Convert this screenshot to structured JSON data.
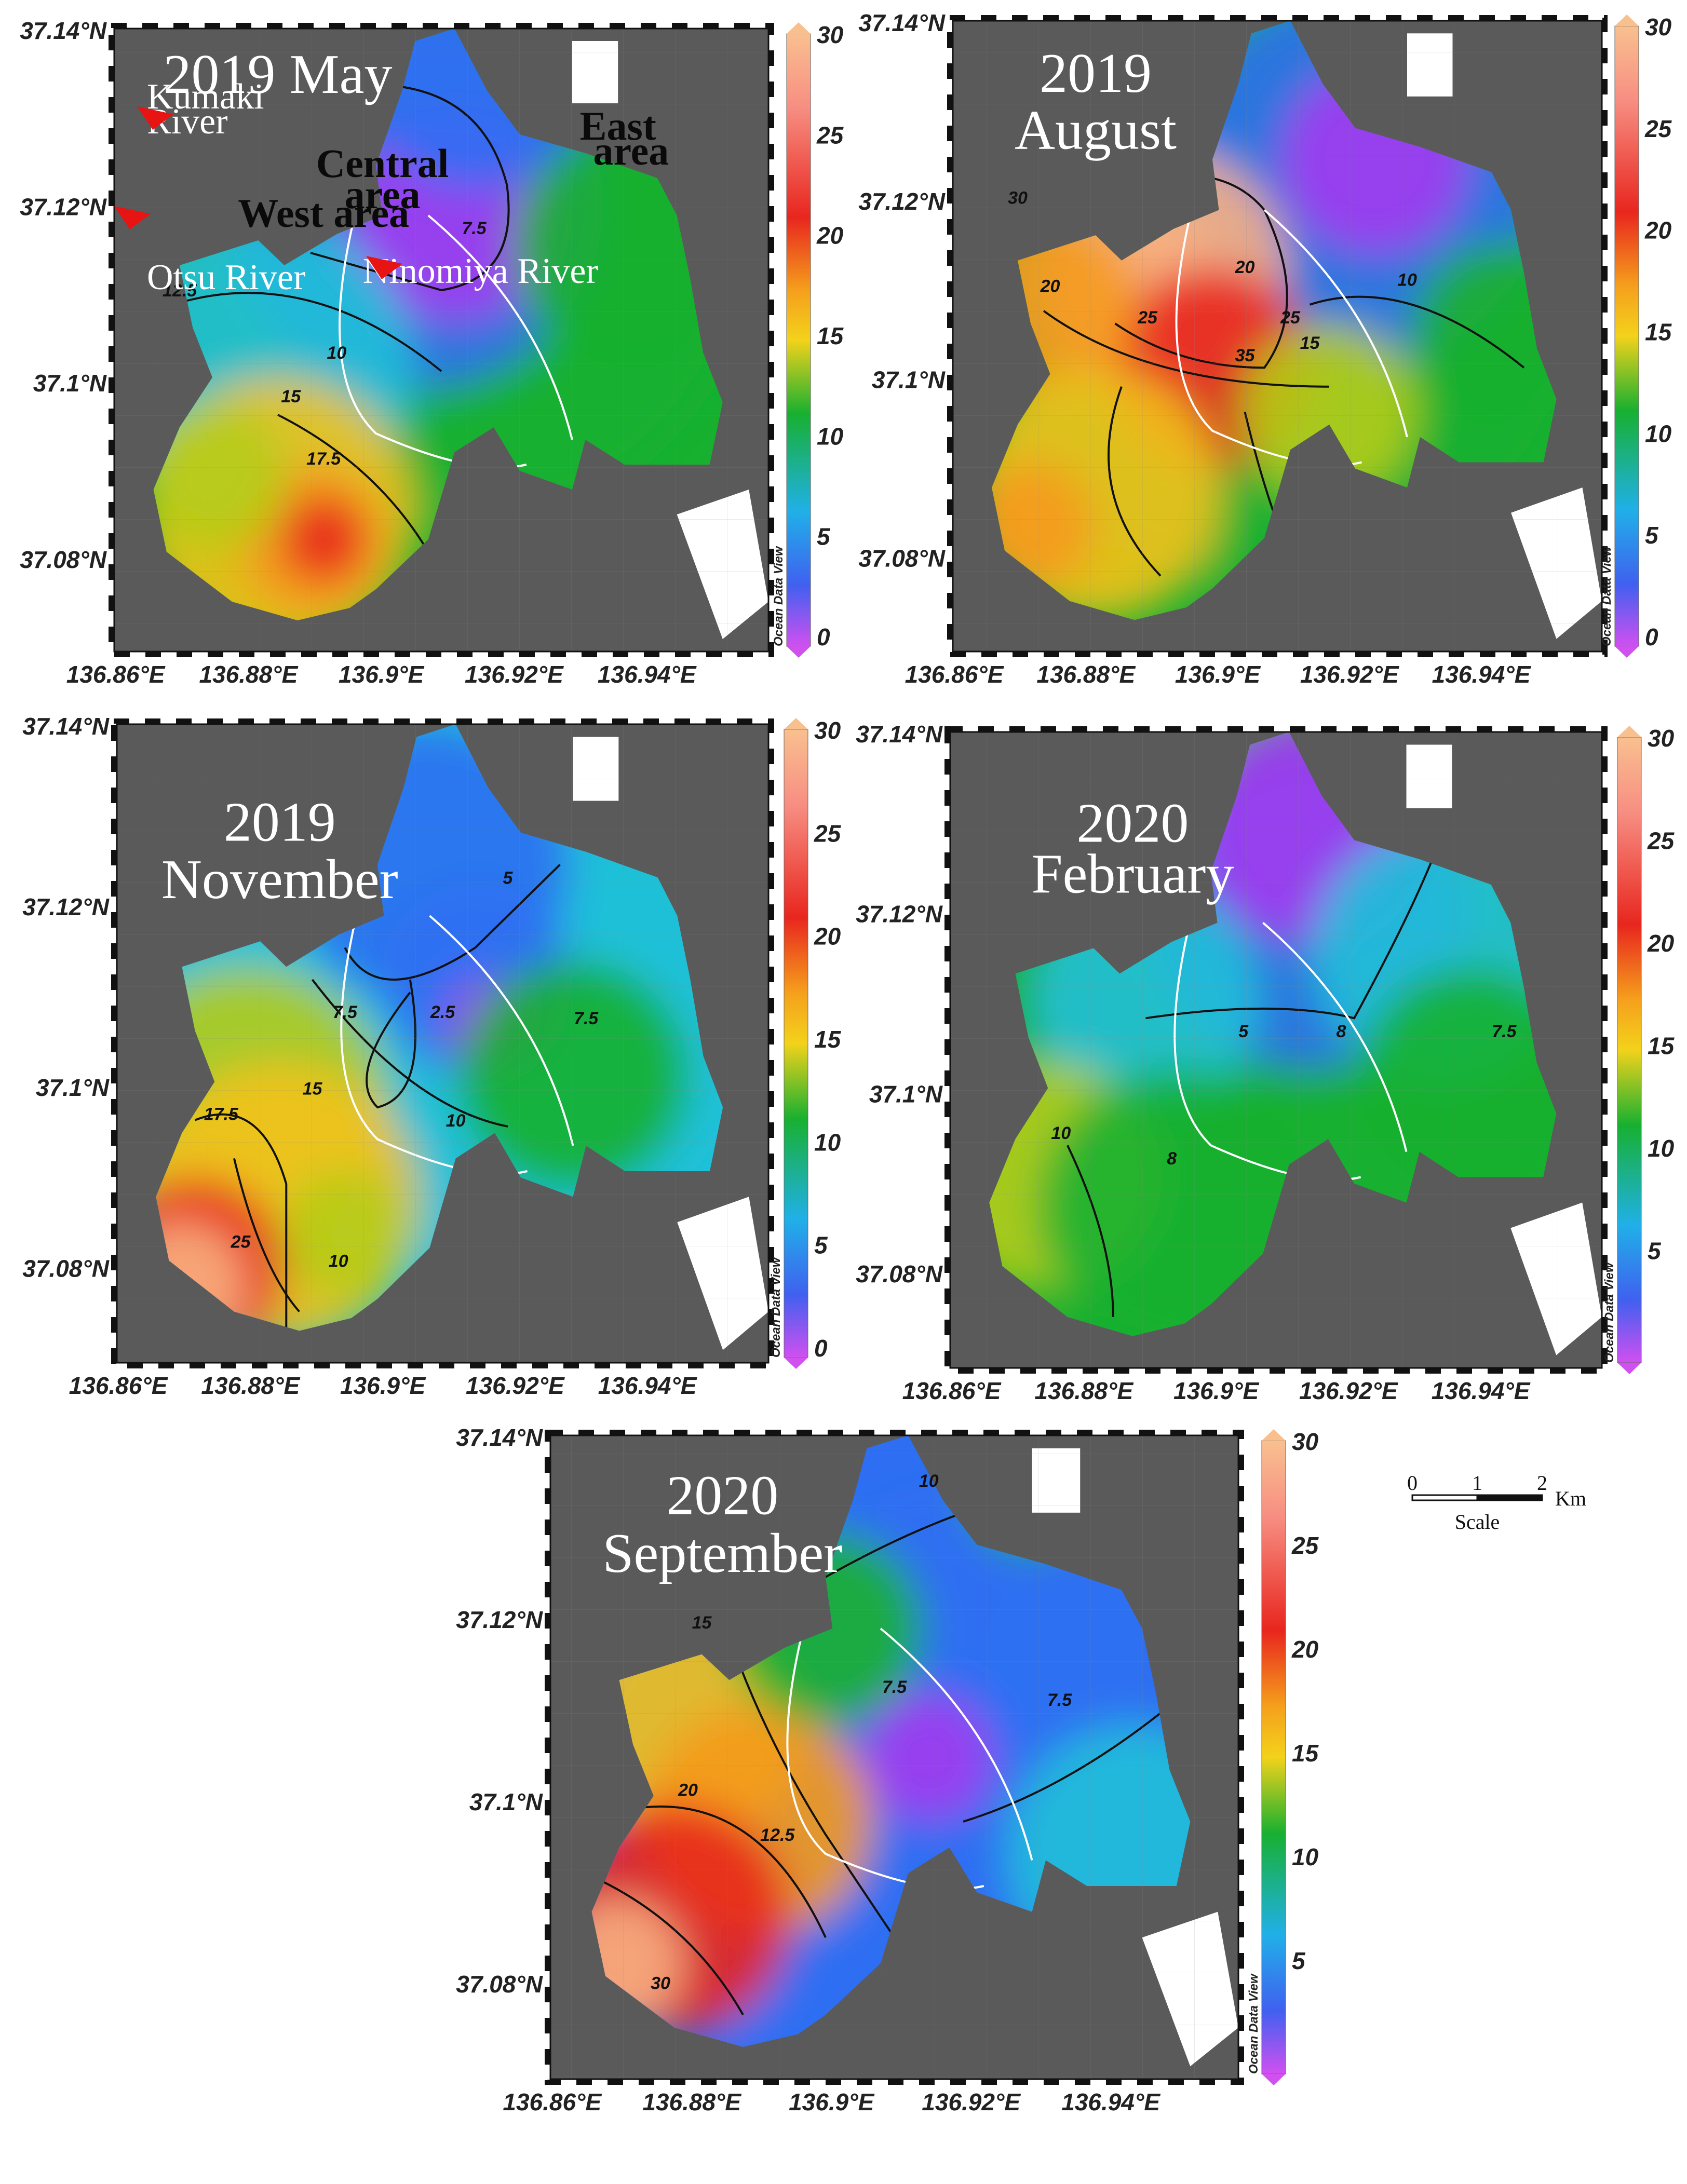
{
  "axes": {
    "x_ticks": [
      "136.86°E",
      "136.88°E",
      "136.9°E",
      "136.92°E",
      "136.94°E"
    ],
    "y_ticks": [
      "37.14°N",
      "37.12°N",
      "37.1°N",
      "37.08°N"
    ]
  },
  "colorbar": {
    "ticks_full": [
      "30",
      "25",
      "20",
      "15",
      "10",
      "5",
      "0"
    ],
    "ticks_no_zero": [
      "30",
      "25",
      "20",
      "15",
      "10",
      "5"
    ],
    "credit": "Ocean Data View"
  },
  "colors": {
    "land": "#5a5a5a",
    "purple": "#a23bf0",
    "blue": "#2f6ff2",
    "cyan": "#20c0d8",
    "green": "#18b030",
    "yellowgreen": "#b5cc18",
    "yellow": "#f3c21b",
    "orange": "#f59a1c",
    "red": "#e8261e",
    "peach": "#f8b082",
    "river_marker": "#e81313"
  },
  "panels": [
    {
      "title_lines": [
        "2019 May"
      ],
      "area_labels": [
        "East",
        "area",
        "Central",
        "area",
        "West area"
      ],
      "river_labels": [
        "Kumaki",
        "River",
        "Otsu River",
        "Ninomiya River"
      ],
      "contour_labels": [
        "7.5",
        "12.5",
        "10",
        "15",
        "17.5"
      ],
      "colorbar_ticks": "full"
    },
    {
      "title_lines": [
        "2019",
        "August"
      ],
      "area_labels": [],
      "river_labels": [],
      "contour_labels": [
        "30",
        "20",
        "25",
        "35",
        "25",
        "15",
        "20",
        "10"
      ],
      "colorbar_ticks": "full"
    },
    {
      "title_lines": [
        "2019",
        "November"
      ],
      "area_labels": [],
      "river_labels": [],
      "contour_labels": [
        "5",
        "7.5",
        "2.5",
        "7.5",
        "15",
        "10",
        "17.5",
        "25",
        "10"
      ],
      "colorbar_ticks": "full"
    },
    {
      "title_lines": [
        "2020",
        "February"
      ],
      "area_labels": [],
      "river_labels": [],
      "contour_labels": [
        "5",
        "8",
        "7.5",
        "10",
        "8"
      ],
      "colorbar_ticks": "no_zero"
    },
    {
      "title_lines": [
        "2020",
        "September"
      ],
      "area_labels": [],
      "river_labels": [],
      "contour_labels": [
        "10",
        "15",
        "7.5",
        "7.5",
        "20",
        "12.5",
        "30"
      ],
      "colorbar_ticks": "no_zero"
    }
  ],
  "scale_bar": {
    "ticks": [
      "0",
      "1",
      "2"
    ],
    "unit": "Km",
    "label": "Scale"
  }
}
